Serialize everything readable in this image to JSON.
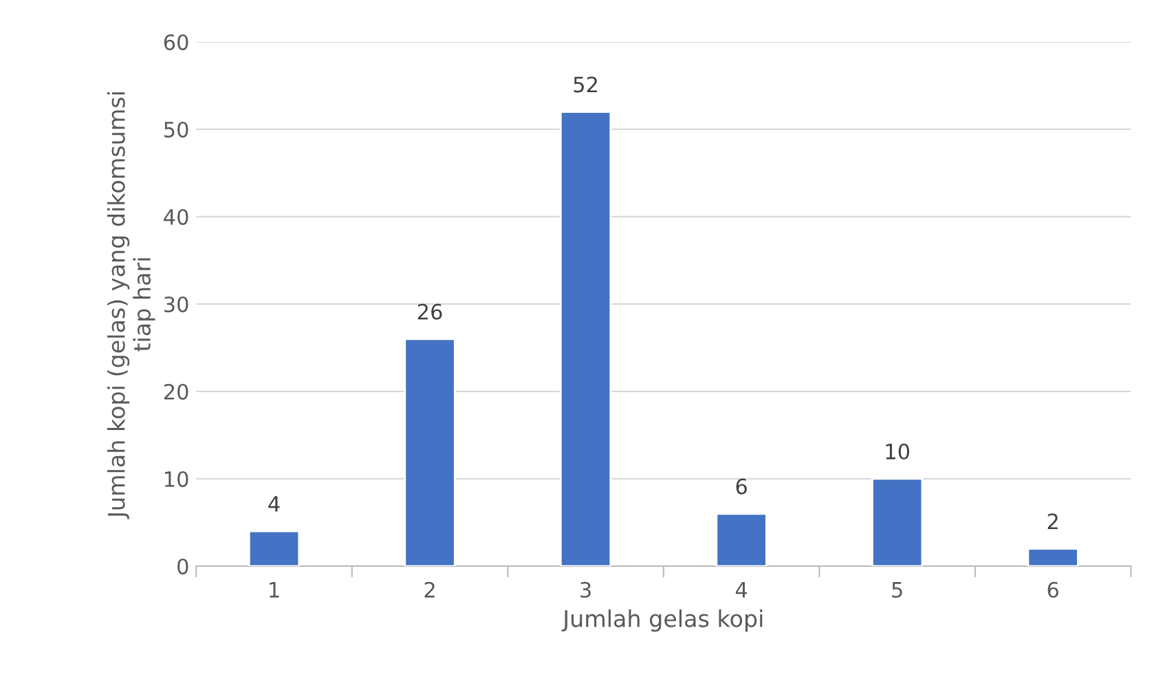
{
  "chart_data": {
    "type": "bar",
    "xlabel": "Jumlah gelas kopi",
    "ylabel": "Jumlah kopi (gelas) yang dikomsumsi\ntiap hari",
    "categories": [
      "1",
      "2",
      "3",
      "4",
      "5",
      "6"
    ],
    "values": [
      4,
      26,
      52,
      6,
      10,
      2
    ],
    "color": "#4472c4",
    "ylim": [
      0,
      60
    ],
    "yticks": [
      0,
      10,
      20,
      30,
      40,
      50,
      60
    ],
    "grid": "y",
    "data_labels": true,
    "legend": false
  }
}
